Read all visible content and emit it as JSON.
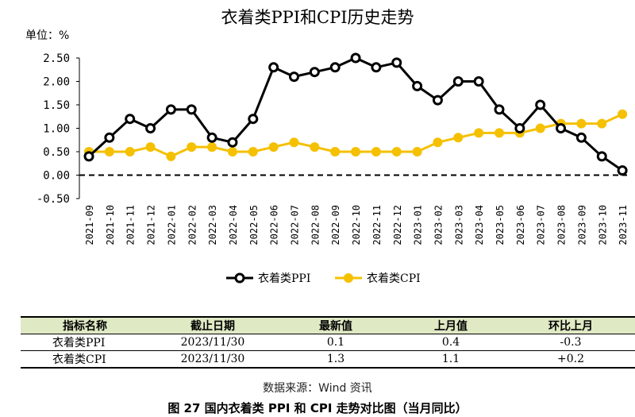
{
  "chart_data": {
    "type": "line",
    "title": "衣着类PPI和CPI历史走势",
    "unit_label": "单位：%",
    "categories": [
      "2021-09",
      "2021-10",
      "2021-11",
      "2021-12",
      "2022-01",
      "2022-02",
      "2022-03",
      "2022-04",
      "2022-05",
      "2022-06",
      "2022-07",
      "2022-08",
      "2022-09",
      "2022-10",
      "2022-11",
      "2022-12",
      "2023-01",
      "2023-02",
      "2023-03",
      "2023-04",
      "2023-05",
      "2023-06",
      "2023-07",
      "2023-08",
      "2023-09",
      "2023-10",
      "2023-11"
    ],
    "ylim": [
      -0.5,
      2.5
    ],
    "yticks": [
      "2.50",
      "2.00",
      "1.50",
      "1.00",
      "0.50",
      "0.00",
      "-0.50"
    ],
    "legend_position": "bottom",
    "grid": false,
    "zero_line": "dashed",
    "series": [
      {
        "name": "衣着类PPI",
        "color": "#000000",
        "values": [
          0.4,
          0.8,
          1.2,
          1.0,
          1.4,
          1.4,
          0.8,
          0.7,
          1.2,
          2.3,
          2.1,
          2.2,
          2.3,
          2.5,
          2.3,
          2.4,
          1.9,
          1.6,
          2.0,
          2.0,
          1.4,
          1.0,
          1.5,
          1.0,
          0.8,
          0.4,
          0.1
        ]
      },
      {
        "name": "衣着类CPI",
        "color": "#f5c000",
        "values": [
          0.5,
          0.5,
          0.5,
          0.6,
          0.4,
          0.6,
          0.6,
          0.5,
          0.5,
          0.6,
          0.7,
          0.6,
          0.5,
          0.5,
          0.5,
          0.5,
          0.5,
          0.7,
          0.8,
          0.9,
          0.9,
          0.9,
          1.0,
          1.1,
          1.1,
          1.1,
          1.3
        ]
      }
    ]
  },
  "table": {
    "headers": [
      "指标名称",
      "截止日期",
      "最新值",
      "上月值",
      "环比上月"
    ],
    "rows": [
      [
        "衣着类PPI",
        "2023/11/30",
        "0.1",
        "0.4",
        "-0.3"
      ],
      [
        "衣着类CPI",
        "2023/11/30",
        "1.3",
        "1.1",
        "+0.2"
      ]
    ]
  },
  "source": "数据来源：Wind 资讯",
  "caption": "图 27   国内衣着类 PPI 和 CPI 走势对比图（当月同比）"
}
